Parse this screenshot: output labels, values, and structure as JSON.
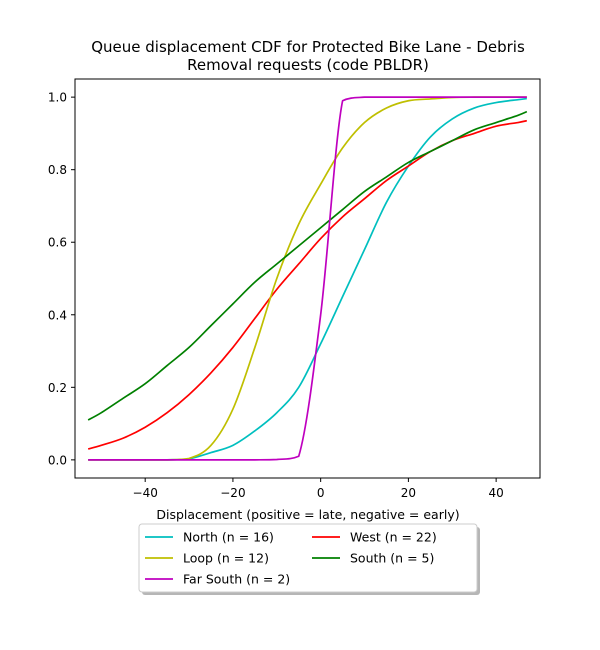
{
  "chart_data": {
    "type": "line",
    "title": [
      "Queue displacement CDF for Protected Bike Lane - Debris",
      "Removal  requests (code PBLDR)"
    ],
    "xlabel": "Displacement (positive = late, negative = early)",
    "ylabel": "",
    "xlim": [
      -56,
      50
    ],
    "ylim": [
      -0.05,
      1.05
    ],
    "xticks": [
      -40,
      -20,
      0,
      20,
      40
    ],
    "xtick_labels": [
      "−40",
      "−20",
      "0",
      "20",
      "40"
    ],
    "yticks": [
      0.0,
      0.2,
      0.4,
      0.6,
      0.8,
      1.0
    ],
    "ytick_labels": [
      "0.0",
      "0.2",
      "0.4",
      "0.6",
      "0.8",
      "1.0"
    ],
    "grid": false,
    "legend_position": "below plot, two columns",
    "x": [
      -53,
      -50,
      -45,
      -40,
      -35,
      -30,
      -25,
      -20,
      -15,
      -10,
      -5,
      0,
      5,
      10,
      15,
      20,
      25,
      30,
      35,
      40,
      45,
      47
    ],
    "series": [
      {
        "name": "North (n = 16)",
        "color": "#00bfbf",
        "values": [
          0.0,
          0.0,
          0.0,
          0.0,
          0.0,
          0.003,
          0.02,
          0.04,
          0.08,
          0.13,
          0.2,
          0.32,
          0.45,
          0.58,
          0.71,
          0.81,
          0.89,
          0.94,
          0.97,
          0.985,
          0.993,
          0.996
        ]
      },
      {
        "name": "West (n = 22)",
        "color": "#ff0000",
        "values": [
          0.03,
          0.04,
          0.06,
          0.09,
          0.13,
          0.18,
          0.24,
          0.31,
          0.39,
          0.47,
          0.54,
          0.61,
          0.67,
          0.72,
          0.77,
          0.81,
          0.85,
          0.88,
          0.9,
          0.92,
          0.93,
          0.935
        ]
      },
      {
        "name": "Loop (n = 12)",
        "color": "#bfbf00",
        "values": [
          0.0,
          0.0,
          0.0,
          0.0,
          0.0,
          0.004,
          0.04,
          0.14,
          0.31,
          0.5,
          0.65,
          0.76,
          0.86,
          0.93,
          0.97,
          0.99,
          0.995,
          0.999,
          1.0,
          1.0,
          1.0,
          1.0
        ]
      },
      {
        "name": "South (n = 5)",
        "color": "#008000",
        "values": [
          0.11,
          0.13,
          0.17,
          0.21,
          0.26,
          0.31,
          0.37,
          0.43,
          0.49,
          0.54,
          0.59,
          0.64,
          0.69,
          0.74,
          0.78,
          0.82,
          0.85,
          0.88,
          0.91,
          0.93,
          0.95,
          0.96
        ]
      },
      {
        "name": "Far South (n = 2)",
        "color": "#bf00bf",
        "values": [
          0.0,
          0.0,
          0.0,
          0.0,
          0.0,
          0.0,
          0.0,
          0.0,
          0.0,
          0.001,
          0.01,
          0.4,
          0.99,
          1.0,
          1.0,
          1.0,
          1.0,
          1.0,
          1.0,
          1.0,
          1.0,
          1.0
        ]
      }
    ]
  }
}
